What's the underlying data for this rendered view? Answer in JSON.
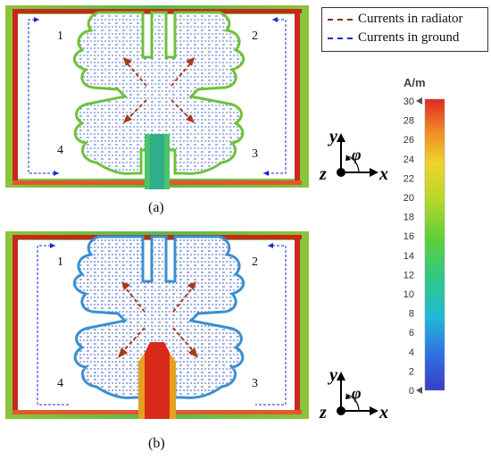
{
  "legend": {
    "items": [
      {
        "label": "Currents in radiator",
        "color": "#8b2a16"
      },
      {
        "label": "Currents in ground",
        "color": "#1a2ad0"
      }
    ]
  },
  "panels": [
    {
      "caption": "(a)",
      "ports": [
        "1",
        "2",
        "3",
        "4"
      ]
    },
    {
      "caption": "(b)",
      "ports": [
        "1",
        "2",
        "3",
        "4"
      ]
    }
  ],
  "axes": {
    "y": "y",
    "x": "x",
    "z": "z",
    "phi": "φ"
  },
  "colorbar": {
    "unit": "A/m",
    "ticks": [
      30,
      28,
      26,
      24,
      22,
      20,
      18,
      16,
      14,
      12,
      10,
      8,
      6,
      4,
      2,
      0
    ],
    "min": 0,
    "max": 30
  },
  "colors": {
    "frame_red": "#c8281c",
    "frame_green": "#6fc13a",
    "radiator_blue": "#3a67c8",
    "radiator_green": "#7cc640",
    "ground_arrow": "#1a2ad0",
    "radiator_arrow": "#a83a18"
  }
}
